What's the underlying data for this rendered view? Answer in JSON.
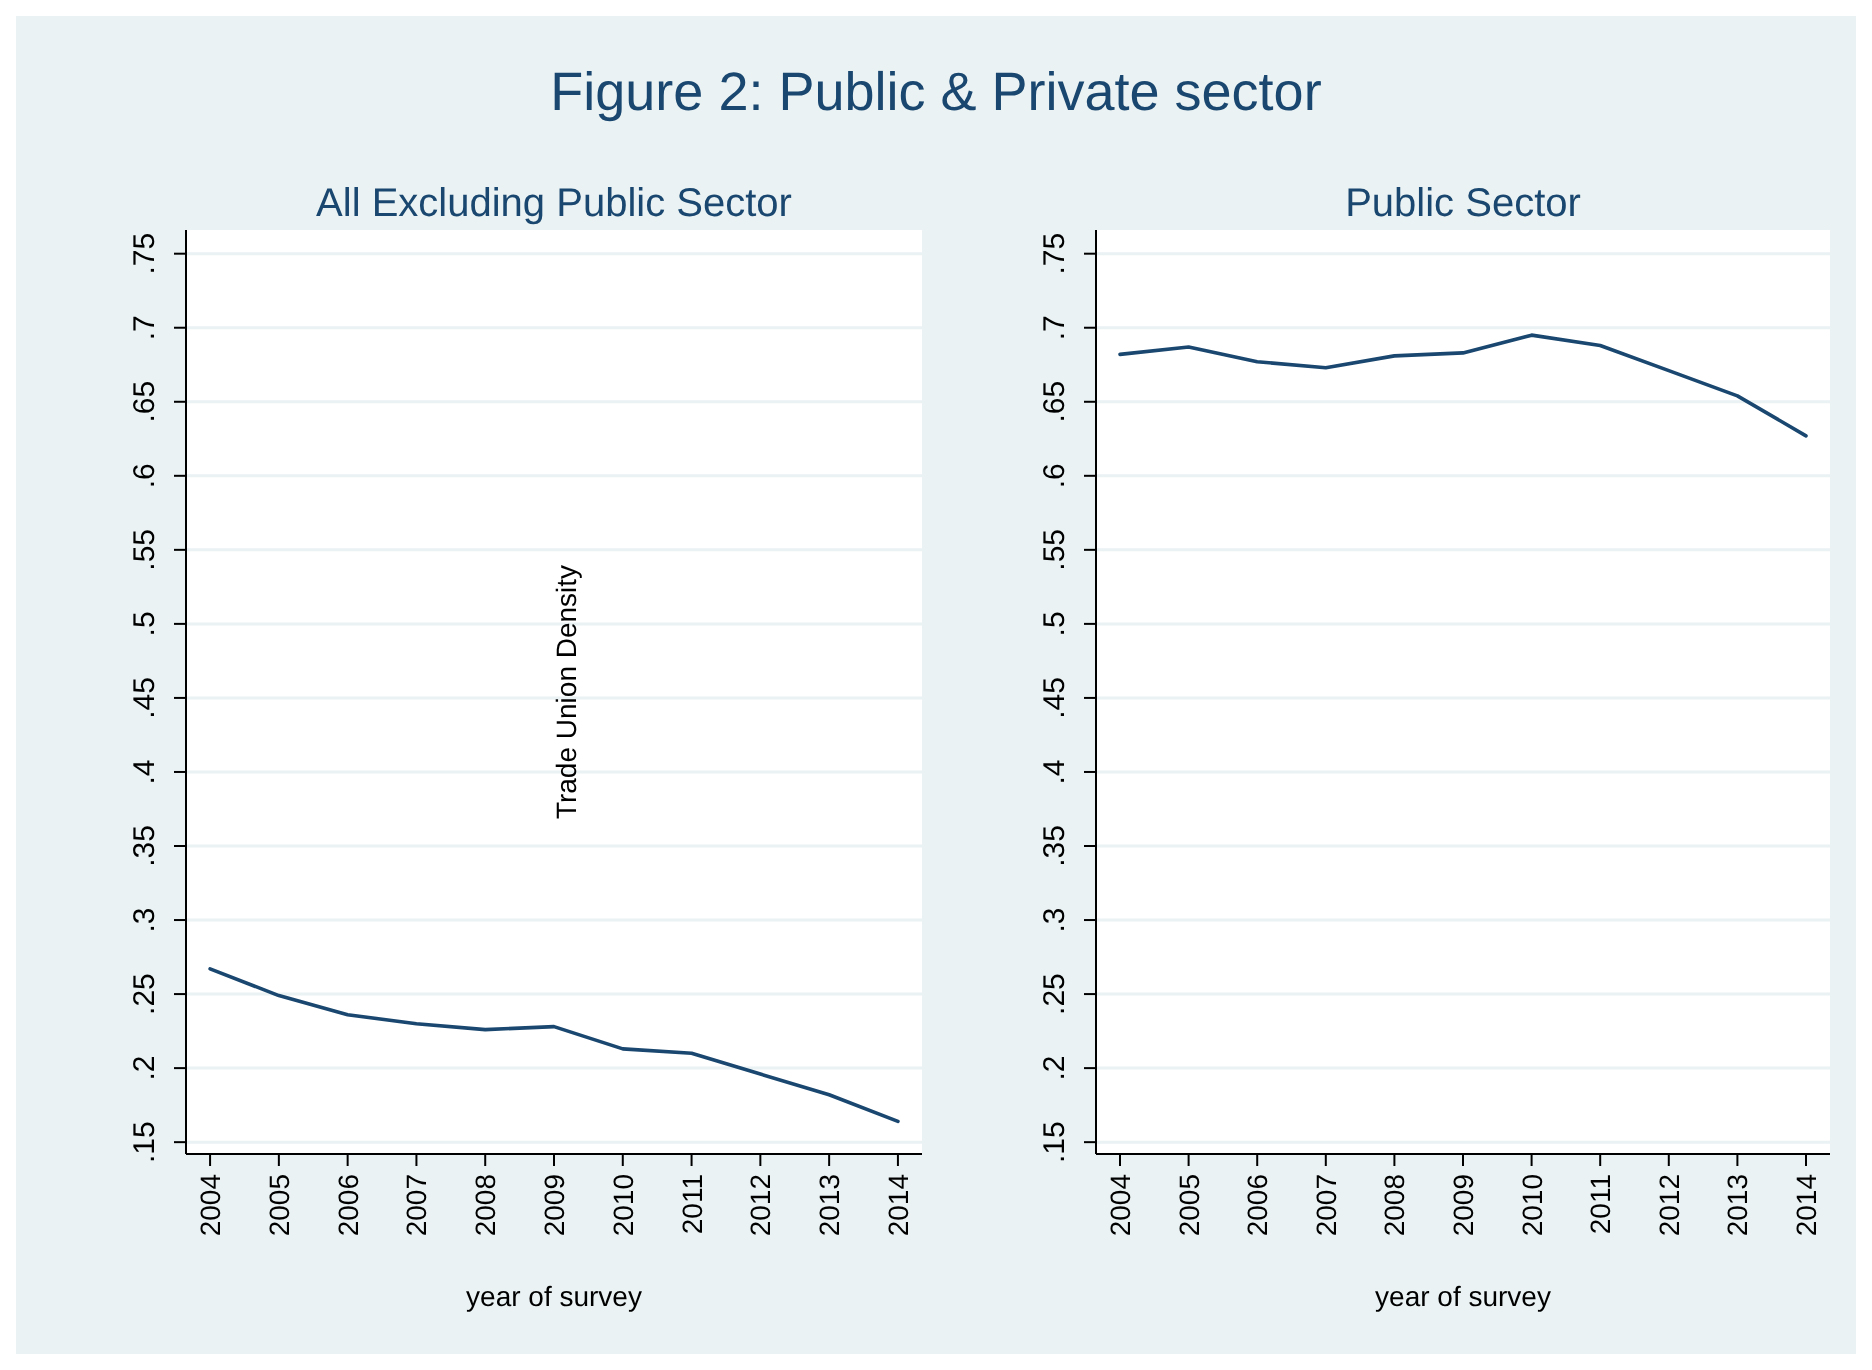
{
  "chart_data": [
    {
      "type": "line",
      "title": "Figure 2: Public & Private sector",
      "subtitle": "All Excluding Public Sector",
      "xlabel": "year of survey",
      "ylabel": "Trade Union Density",
      "categories": [
        "2004",
        "2005",
        "2006",
        "2007",
        "2008",
        "2009",
        "2010",
        "2011",
        "2012",
        "2013",
        "2014"
      ],
      "series": [
        {
          "color": "#1a476f",
          "values": [
            0.267,
            0.249,
            0.236,
            0.23,
            0.226,
            0.228,
            0.213,
            0.21,
            0.196,
            0.182,
            0.164
          ]
        }
      ],
      "ylim": [
        0.142,
        0.766
      ],
      "yticks": [
        {
          "value": 0.15,
          "label": ".15"
        },
        {
          "value": 0.2,
          "label": ".2"
        },
        {
          "value": 0.25,
          "label": ".25"
        },
        {
          "value": 0.3,
          "label": ".3"
        },
        {
          "value": 0.35,
          "label": ".35"
        },
        {
          "value": 0.4,
          "label": ".4"
        },
        {
          "value": 0.45,
          "label": ".45"
        },
        {
          "value": 0.5,
          "label": ".5"
        },
        {
          "value": 0.55,
          "label": ".55"
        },
        {
          "value": 0.6,
          "label": ".6"
        },
        {
          "value": 0.65,
          "label": ".65"
        },
        {
          "value": 0.7,
          "label": ".7"
        },
        {
          "value": 0.75,
          "label": ".75"
        }
      ],
      "grid": "y"
    },
    {
      "type": "line",
      "subtitle": "Public Sector",
      "xlabel": "year of survey",
      "categories": [
        "2004",
        "2005",
        "2006",
        "2007",
        "2008",
        "2009",
        "2010",
        "2011",
        "2012",
        "2013",
        "2014"
      ],
      "series": [
        {
          "color": "#1a476f",
          "values": [
            0.682,
            0.687,
            0.677,
            0.673,
            0.681,
            0.683,
            0.695,
            0.688,
            0.671,
            0.654,
            0.627
          ]
        }
      ],
      "ylim": [
        0.142,
        0.766
      ],
      "yticks": [
        {
          "value": 0.15,
          "label": ".15"
        },
        {
          "value": 0.2,
          "label": ".2"
        },
        {
          "value": 0.25,
          "label": ".25"
        },
        {
          "value": 0.3,
          "label": ".3"
        },
        {
          "value": 0.35,
          "label": ".35"
        },
        {
          "value": 0.4,
          "label": ".4"
        },
        {
          "value": 0.45,
          "label": ".45"
        },
        {
          "value": 0.5,
          "label": ".5"
        },
        {
          "value": 0.55,
          "label": ".55"
        },
        {
          "value": 0.6,
          "label": ".6"
        },
        {
          "value": 0.65,
          "label": ".65"
        },
        {
          "value": 0.7,
          "label": ".7"
        },
        {
          "value": 0.75,
          "label": ".75"
        }
      ],
      "grid": "y"
    }
  ]
}
